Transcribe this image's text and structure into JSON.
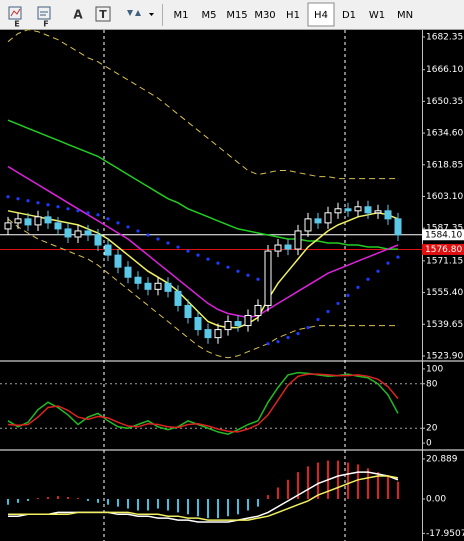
{
  "toolbar": {
    "tools": [
      "E",
      "F",
      "A",
      "T"
    ],
    "timeframes": [
      "M1",
      "M5",
      "M15",
      "M30",
      "H1",
      "H4",
      "D1",
      "W1",
      "MN"
    ],
    "active_timeframe": "H4"
  },
  "chart_data": [
    {
      "type": "candlestick",
      "open": [
        1587,
        1590,
        1592,
        1589,
        1593,
        1590,
        1587,
        1583,
        1586,
        1584,
        1579,
        1574,
        1568,
        1563,
        1560,
        1557,
        1560,
        1556,
        1549,
        1543,
        1537,
        1533,
        1537,
        1541,
        1539,
        1544,
        1549,
        1576,
        1579,
        1577,
        1586,
        1592,
        1590,
        1595,
        1597,
        1596,
        1598,
        1595,
        1596,
        1592
      ],
      "high": [
        1593,
        1595,
        1595,
        1596,
        1596,
        1593,
        1590,
        1589,
        1589,
        1587,
        1582,
        1577,
        1571,
        1566,
        1563,
        1563,
        1563,
        1559,
        1552,
        1546,
        1540,
        1540,
        1544,
        1544,
        1547,
        1552,
        1579,
        1582,
        1582,
        1589,
        1595,
        1595,
        1598,
        1600,
        1600,
        1601,
        1601,
        1599,
        1599,
        1595
      ],
      "low": [
        1584,
        1587,
        1586,
        1586,
        1587,
        1584,
        1580,
        1580,
        1581,
        1576,
        1571,
        1565,
        1560,
        1557,
        1554,
        1554,
        1553,
        1546,
        1540,
        1534,
        1530,
        1530,
        1534,
        1536,
        1536,
        1541,
        1546,
        1573,
        1574,
        1574,
        1583,
        1587,
        1587,
        1592,
        1593,
        1593,
        1592,
        1592,
        1589,
        1581
      ],
      "close": [
        1590,
        1592,
        1589,
        1593,
        1590,
        1587,
        1583,
        1586,
        1584,
        1579,
        1574,
        1568,
        1563,
        1560,
        1557,
        1560,
        1556,
        1549,
        1543,
        1537,
        1533,
        1537,
        1541,
        1539,
        1544,
        1549,
        1576,
        1579,
        1577,
        1586,
        1592,
        1590,
        1595,
        1597,
        1596,
        1598,
        1595,
        1596,
        1592,
        1584.1
      ],
      "bull_color": "#ffffff",
      "bear_color": "#5cc8e8",
      "series": [
        {
          "color": "#22cc22",
          "style": "solid",
          "values": [
            1641,
            1639,
            1637,
            1635,
            1633,
            1631,
            1629,
            1627,
            1625,
            1623,
            1620,
            1617,
            1614,
            1611,
            1608,
            1605,
            1602,
            1600,
            1597,
            1595,
            1593,
            1591,
            1589,
            1587,
            1586,
            1585,
            1584,
            1583,
            1582,
            1582,
            1581,
            1581,
            1580,
            1580,
            1579,
            1579,
            1578,
            1578,
            1577,
            1577
          ]
        },
        {
          "color": "#dd22dd",
          "style": "solid",
          "values": [
            1618,
            1615,
            1612,
            1609,
            1606,
            1603,
            1600,
            1597,
            1594,
            1591,
            1588,
            1585,
            1582,
            1578,
            1574,
            1570,
            1566,
            1562,
            1558,
            1554,
            1550,
            1547,
            1545,
            1544,
            1543,
            1544,
            1547,
            1550,
            1553,
            1556,
            1559,
            1562,
            1565,
            1567,
            1569,
            1571,
            1573,
            1575,
            1577,
            1579
          ]
        },
        {
          "color": "#f0f060",
          "style": "solid",
          "values": [
            1596,
            1595,
            1594,
            1593,
            1592,
            1591,
            1590,
            1589,
            1587,
            1585,
            1582,
            1578,
            1574,
            1570,
            1566,
            1563,
            1560,
            1556,
            1551,
            1546,
            1541,
            1539,
            1538,
            1538,
            1540,
            1543,
            1552,
            1560,
            1566,
            1572,
            1578,
            1582,
            1586,
            1589,
            1591,
            1593,
            1594,
            1595,
            1594,
            1592
          ]
        },
        {
          "color": "#d8c050",
          "style": "dashed",
          "values": [
            1680,
            1684,
            1686,
            1685,
            1683,
            1681,
            1678,
            1675,
            1672,
            1670,
            1667,
            1664,
            1661,
            1658,
            1655,
            1652,
            1648,
            1644,
            1640,
            1636,
            1632,
            1628,
            1624,
            1620,
            1616,
            1614,
            1615,
            1616,
            1616,
            1615,
            1614,
            1613,
            1613,
            1612,
            1612,
            1612,
            1612,
            1612,
            1612,
            1612
          ]
        },
        {
          "color": "#d8c050",
          "style": "dashed",
          "values": [
            1592,
            1588,
            1585,
            1582,
            1580,
            1578,
            1576,
            1574,
            1572,
            1569,
            1565,
            1561,
            1557,
            1553,
            1549,
            1545,
            1541,
            1537,
            1533,
            1529,
            1526,
            1524,
            1523,
            1524,
            1526,
            1528,
            1530,
            1533,
            1535,
            1537,
            1538,
            1539,
            1539,
            1539,
            1539,
            1539,
            1539,
            1539,
            1539,
            1539
          ]
        },
        {
          "color": "#1e3cff",
          "style": "dots",
          "values": [
            1603,
            1602,
            1601,
            1600,
            1599,
            1598,
            1597,
            1596,
            1595,
            1594,
            1592,
            1590,
            1588,
            1586,
            1584,
            1582,
            1580,
            1578,
            1576,
            1574,
            1572,
            1570,
            1568,
            1566,
            1564,
            1562,
            1530,
            1531,
            1533,
            1535,
            1538,
            1542,
            1546,
            1550,
            1554,
            1558,
            1562,
            1566,
            1570,
            1573
          ]
        }
      ],
      "price_lines": [
        {
          "value": 1584.1,
          "label": "1584.10",
          "color": "#ffffff",
          "text_color": "#000000"
        },
        {
          "value": 1576.8,
          "label": "1576.80",
          "color": "#e01010",
          "text_color": "#ffffff"
        }
      ],
      "ylim": [
        1521.9,
        1685.8
      ],
      "yticks": [
        1682.35,
        {
          "value": 1666.1,
          "label": "1666.10"
        },
        1650.35,
        {
          "value": 1634.6,
          "label": "1634.60"
        },
        1618.85,
        {
          "value": 1603.1,
          "label": "1603.10"
        },
        1587.35,
        1571.15,
        {
          "value": 1555.4,
          "label": "1555.40"
        },
        1539.65,
        {
          "value": 1523.9,
          "label": "1523.90"
        }
      ]
    },
    {
      "type": "line",
      "series": [
        {
          "color": "#22bb22",
          "style": "solid",
          "values": [
            30,
            22,
            28,
            45,
            55,
            48,
            38,
            25,
            35,
            40,
            30,
            22,
            20,
            25,
            30,
            22,
            18,
            22,
            30,
            25,
            20,
            15,
            12,
            18,
            25,
            30,
            55,
            75,
            92,
            95,
            94,
            92,
            90,
            91,
            93,
            90,
            88,
            80,
            65,
            40
          ]
        },
        {
          "color": "#dd2222",
          "style": "solid",
          "values": [
            25,
            24,
            25,
            35,
            48,
            50,
            44,
            35,
            32,
            36,
            34,
            28,
            23,
            22,
            26,
            25,
            22,
            21,
            25,
            26,
            23,
            19,
            16,
            15,
            19,
            25,
            38,
            58,
            78,
            90,
            93,
            93,
            92,
            91,
            91,
            92,
            90,
            86,
            76,
            60
          ]
        }
      ],
      "levels": [
        80,
        20
      ],
      "ylim": [
        -8,
        108
      ],
      "yticks": [
        100,
        80,
        20,
        0
      ]
    },
    {
      "type": "macd",
      "histogram": [
        -3,
        -2,
        -1,
        0.5,
        1,
        1.5,
        1,
        0.5,
        -1,
        -2,
        -3,
        -4,
        -5,
        -6,
        -6,
        -5,
        -6,
        -7,
        -8,
        -9,
        -10,
        -10,
        -9,
        -8,
        -6,
        -4,
        2,
        6,
        10,
        14,
        17,
        19,
        20,
        20,
        19,
        18,
        16,
        14,
        12,
        9
      ],
      "color_up": "#e02020",
      "color_down": "#40c0e0",
      "series": [
        {
          "color": "#ffffff",
          "style": "solid",
          "values": [
            -9,
            -9,
            -8,
            -8,
            -8,
            -7,
            -7,
            -7,
            -7,
            -7,
            -7,
            -8,
            -8,
            -9,
            -9,
            -10,
            -10,
            -11,
            -11,
            -12,
            -12,
            -12,
            -12,
            -11,
            -10,
            -9,
            -7,
            -4,
            -1,
            2,
            5,
            8,
            10,
            12,
            13,
            14,
            14,
            13,
            12,
            10
          ]
        },
        {
          "color": "#f0f060",
          "style": "solid",
          "values": [
            -8,
            -8,
            -8,
            -8,
            -8,
            -8,
            -8,
            -7,
            -7,
            -7,
            -7,
            -7,
            -7,
            -8,
            -8,
            -8,
            -9,
            -9,
            -10,
            -10,
            -11,
            -11,
            -11,
            -11,
            -11,
            -10,
            -9,
            -7,
            -5,
            -3,
            -1,
            2,
            4,
            6,
            8,
            10,
            11,
            12,
            12,
            11
          ]
        }
      ],
      "ylim": [
        -21.4,
        24.5
      ],
      "yticks": [
        20.889,
        {
          "value": 0,
          "label": "0.00"
        },
        -17.9507
      ]
    }
  ]
}
